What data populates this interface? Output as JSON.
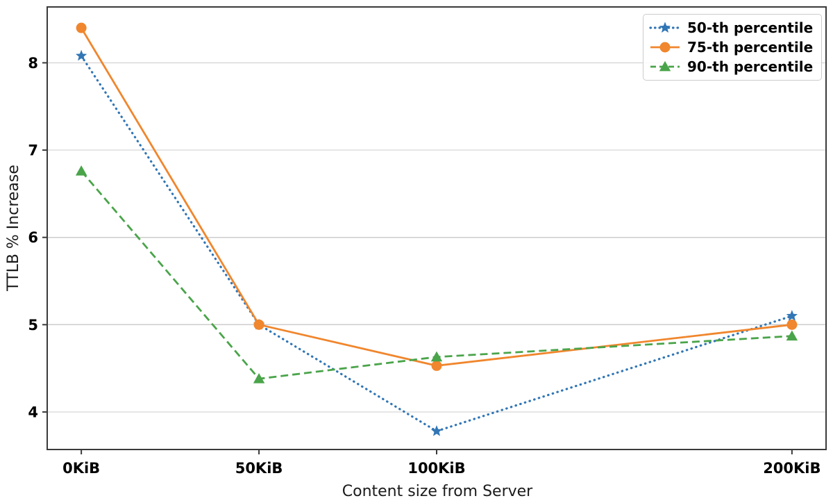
{
  "chart_data": {
    "type": "line",
    "title": "",
    "xlabel": "Content size from Server",
    "ylabel": "TTLB % Increase",
    "x": [
      0,
      50,
      100,
      200
    ],
    "x_tick_labels": [
      "0KiB",
      "50KiB",
      "100KiB",
      "200KiB"
    ],
    "y_ticks": [
      4,
      5,
      6,
      7,
      8
    ],
    "y_tick_labels": [
      "4",
      "5",
      "6",
      "7",
      "8"
    ],
    "xlim": [
      -9.6,
      209.6
    ],
    "ylim": [
      3.57,
      8.64
    ],
    "grid": "horizontal-only",
    "legend_position": "upper-right",
    "series": [
      {
        "name": "50-th percentile",
        "color": "#3176b5",
        "linestyle": "dotted",
        "marker": "star",
        "values": [
          8.08,
          5.0,
          3.78,
          5.1
        ]
      },
      {
        "name": "75-th percentile",
        "color": "#f0862d",
        "linestyle": "solid",
        "marker": "circle",
        "values": [
          8.4,
          5.0,
          4.53,
          5.0
        ]
      },
      {
        "name": "90-th percentile",
        "color": "#4aa44a",
        "linestyle": "dashed",
        "marker": "triangle-up",
        "values": [
          6.76,
          4.38,
          4.63,
          4.87
        ]
      }
    ]
  },
  "colors": {
    "grid": "#cccccc",
    "spine": "#3a3a3a",
    "tick": "#3a3a3a",
    "tick_label": "#000000",
    "axis_label": "#1a1a1a",
    "legend_border": "#cccccc",
    "legend_bg": "#ffffff"
  }
}
